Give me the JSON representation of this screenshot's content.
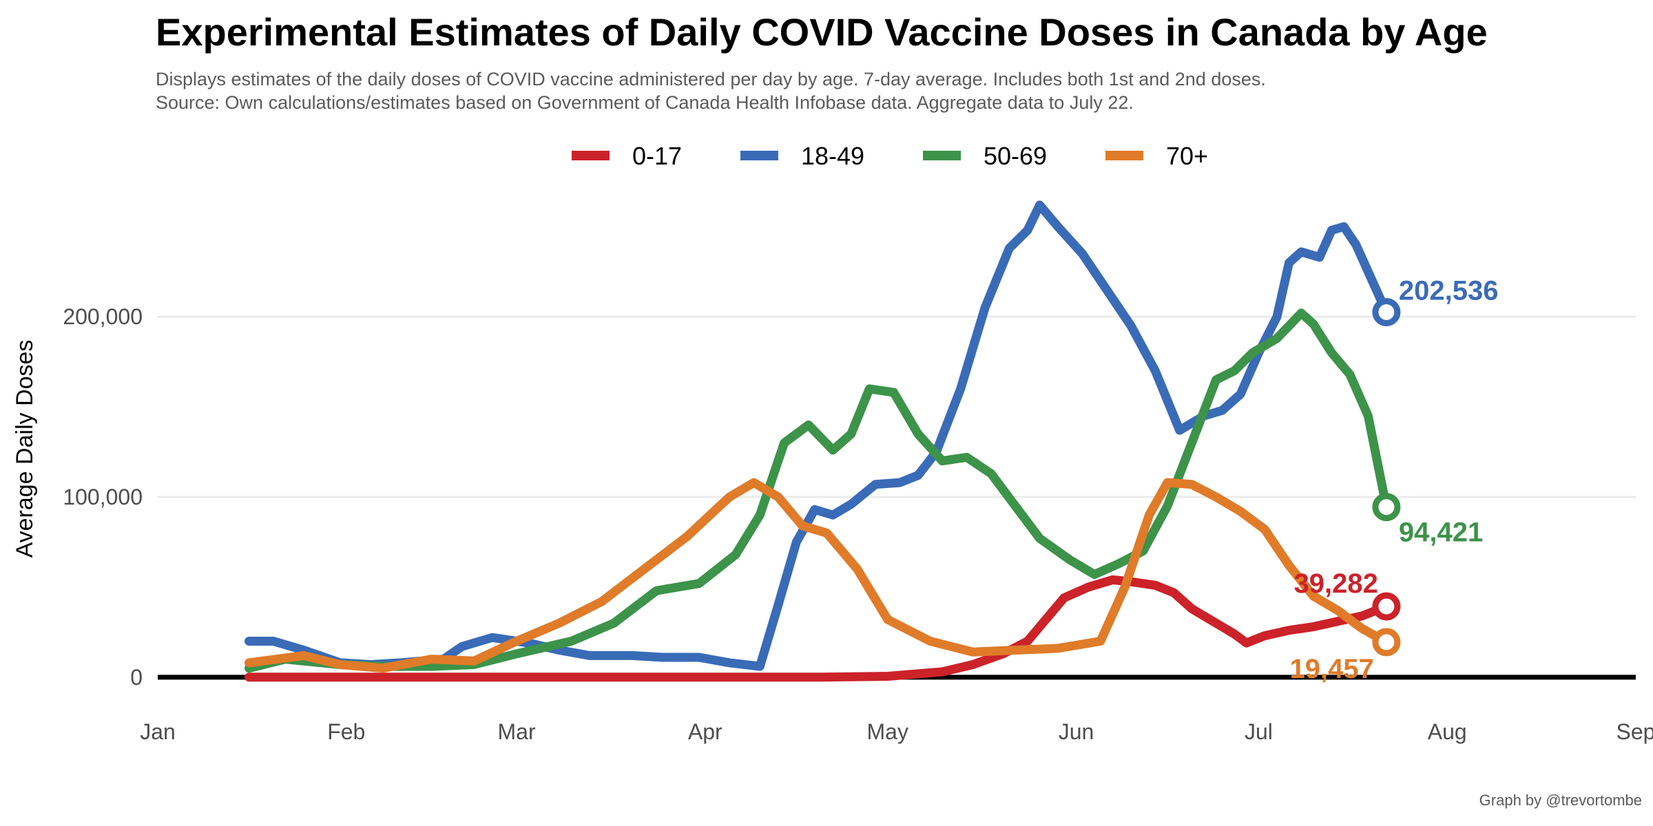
{
  "chart_data": {
    "type": "line",
    "title": "Experimental Estimates of Daily COVID Vaccine Doses in Canada by Age",
    "subtitle": [
      "Displays estimates of the daily doses of COVID vaccine administered per day by age. 7-day average. Includes both 1st and 2nd doses.",
      "Source: Own calculations/estimates based on Government of Canada Health Infobase data. Aggregate data to July 22."
    ],
    "caption": "Graph by @trevortombe",
    "ylabel": "Average Daily Doses",
    "xlabel": "",
    "x_tick_labels": [
      "Jan",
      "Feb",
      "Mar",
      "Apr",
      "May",
      "Jun",
      "Jul",
      "Aug",
      "Sep"
    ],
    "x_tick_dates": [
      "2021-01-01",
      "2021-02-01",
      "2021-03-01",
      "2021-04-01",
      "2021-05-01",
      "2021-06-01",
      "2021-07-01",
      "2021-08-01",
      "2021-09-01"
    ],
    "y_tick_values": [
      0,
      100000,
      200000
    ],
    "y_tick_labels": [
      "0",
      "100,000",
      "200,000"
    ],
    "xlim": [
      "2021-01-01",
      "2021-09-01"
    ],
    "ylim": [
      -10000,
      265000
    ],
    "grid": true,
    "legend_position": "top",
    "series": [
      {
        "name": "0-17",
        "color": "#cc2229",
        "end_label": "39,282",
        "points": [
          [
            "2021-01-16",
            0
          ],
          [
            "2021-02-15",
            0
          ],
          [
            "2021-03-20",
            0
          ],
          [
            "2021-04-20",
            0
          ],
          [
            "2021-05-01",
            500
          ],
          [
            "2021-05-10",
            3000
          ],
          [
            "2021-05-15",
            7000
          ],
          [
            "2021-05-20",
            13000
          ],
          [
            "2021-05-24",
            20000
          ],
          [
            "2021-05-27",
            32000
          ],
          [
            "2021-05-30",
            44000
          ],
          [
            "2021-06-03",
            50000
          ],
          [
            "2021-06-07",
            54000
          ],
          [
            "2021-06-10",
            53000
          ],
          [
            "2021-06-14",
            51000
          ],
          [
            "2021-06-17",
            47000
          ],
          [
            "2021-06-20",
            38000
          ],
          [
            "2021-06-24",
            30000
          ],
          [
            "2021-06-27",
            24000
          ],
          [
            "2021-06-29",
            19000
          ],
          [
            "2021-07-02",
            23000
          ],
          [
            "2021-07-06",
            26000
          ],
          [
            "2021-07-10",
            28000
          ],
          [
            "2021-07-14",
            31000
          ],
          [
            "2021-07-18",
            34000
          ],
          [
            "2021-07-22",
            39282
          ]
        ]
      },
      {
        "name": "18-49",
        "color": "#3a6bb7",
        "end_label": "202,536",
        "points": [
          [
            "2021-01-16",
            20000
          ],
          [
            "2021-01-20",
            20000
          ],
          [
            "2021-01-25",
            15000
          ],
          [
            "2021-01-31",
            8000
          ],
          [
            "2021-02-05",
            7000
          ],
          [
            "2021-02-10",
            8000
          ],
          [
            "2021-02-17",
            10000
          ],
          [
            "2021-02-20",
            17000
          ],
          [
            "2021-02-25",
            22000
          ],
          [
            "2021-03-03",
            19000
          ],
          [
            "2021-03-08",
            15000
          ],
          [
            "2021-03-13",
            12000
          ],
          [
            "2021-03-20",
            12000
          ],
          [
            "2021-03-25",
            11000
          ],
          [
            "2021-03-31",
            11000
          ],
          [
            "2021-04-05",
            8000
          ],
          [
            "2021-04-10",
            6000
          ],
          [
            "2021-04-13",
            40000
          ],
          [
            "2021-04-16",
            75000
          ],
          [
            "2021-04-19",
            93000
          ],
          [
            "2021-04-22",
            90000
          ],
          [
            "2021-04-25",
            96000
          ],
          [
            "2021-04-29",
            107000
          ],
          [
            "2021-05-03",
            108000
          ],
          [
            "2021-05-06",
            112000
          ],
          [
            "2021-05-09",
            125000
          ],
          [
            "2021-05-13",
            160000
          ],
          [
            "2021-05-17",
            205000
          ],
          [
            "2021-05-21",
            238000
          ],
          [
            "2021-05-24",
            248000
          ],
          [
            "2021-05-26",
            262000
          ],
          [
            "2021-05-29",
            250000
          ],
          [
            "2021-06-02",
            235000
          ],
          [
            "2021-06-06",
            215000
          ],
          [
            "2021-06-10",
            195000
          ],
          [
            "2021-06-14",
            170000
          ],
          [
            "2021-06-18",
            137000
          ],
          [
            "2021-06-22",
            145000
          ],
          [
            "2021-06-25",
            148000
          ],
          [
            "2021-06-28",
            157000
          ],
          [
            "2021-07-01",
            180000
          ],
          [
            "2021-07-04",
            200000
          ],
          [
            "2021-07-06",
            230000
          ],
          [
            "2021-07-08",
            236000
          ],
          [
            "2021-07-11",
            233000
          ],
          [
            "2021-07-13",
            248000
          ],
          [
            "2021-07-15",
            250000
          ],
          [
            "2021-07-17",
            240000
          ],
          [
            "2021-07-19",
            225000
          ],
          [
            "2021-07-22",
            202536
          ]
        ]
      },
      {
        "name": "50-69",
        "color": "#3c9349",
        "end_label": "94,421",
        "points": [
          [
            "2021-01-16",
            5000
          ],
          [
            "2021-01-22",
            10000
          ],
          [
            "2021-01-31",
            7000
          ],
          [
            "2021-02-07",
            6000
          ],
          [
            "2021-02-15",
            6000
          ],
          [
            "2021-02-22",
            7000
          ],
          [
            "2021-03-01",
            13000
          ],
          [
            "2021-03-10",
            20000
          ],
          [
            "2021-03-17",
            30000
          ],
          [
            "2021-03-24",
            48000
          ],
          [
            "2021-03-31",
            52000
          ],
          [
            "2021-04-06",
            68000
          ],
          [
            "2021-04-10",
            90000
          ],
          [
            "2021-04-14",
            130000
          ],
          [
            "2021-04-18",
            140000
          ],
          [
            "2021-04-22",
            126000
          ],
          [
            "2021-04-25",
            135000
          ],
          [
            "2021-04-28",
            160000
          ],
          [
            "2021-05-02",
            158000
          ],
          [
            "2021-05-06",
            135000
          ],
          [
            "2021-05-10",
            120000
          ],
          [
            "2021-05-14",
            122000
          ],
          [
            "2021-05-18",
            113000
          ],
          [
            "2021-05-22",
            95000
          ],
          [
            "2021-05-26",
            77000
          ],
          [
            "2021-05-31",
            65000
          ],
          [
            "2021-06-04",
            57000
          ],
          [
            "2021-06-08",
            63000
          ],
          [
            "2021-06-12",
            70000
          ],
          [
            "2021-06-16",
            95000
          ],
          [
            "2021-06-20",
            130000
          ],
          [
            "2021-06-24",
            165000
          ],
          [
            "2021-06-27",
            170000
          ],
          [
            "2021-06-30",
            180000
          ],
          [
            "2021-07-04",
            188000
          ],
          [
            "2021-07-08",
            202000
          ],
          [
            "2021-07-10",
            196000
          ],
          [
            "2021-07-13",
            180000
          ],
          [
            "2021-07-16",
            168000
          ],
          [
            "2021-07-19",
            145000
          ],
          [
            "2021-07-22",
            94421
          ]
        ]
      },
      {
        "name": "70+",
        "color": "#e07b29",
        "end_label": "19,457",
        "points": [
          [
            "2021-01-16",
            8000
          ],
          [
            "2021-01-25",
            12000
          ],
          [
            "2021-01-31",
            7000
          ],
          [
            "2021-02-07",
            5000
          ],
          [
            "2021-02-15",
            10000
          ],
          [
            "2021-02-22",
            9000
          ],
          [
            "2021-03-01",
            20000
          ],
          [
            "2021-03-08",
            30000
          ],
          [
            "2021-03-15",
            42000
          ],
          [
            "2021-03-22",
            60000
          ],
          [
            "2021-03-29",
            78000
          ],
          [
            "2021-04-05",
            100000
          ],
          [
            "2021-04-09",
            108000
          ],
          [
            "2021-04-13",
            100000
          ],
          [
            "2021-04-17",
            84000
          ],
          [
            "2021-04-21",
            80000
          ],
          [
            "2021-04-26",
            60000
          ],
          [
            "2021-05-01",
            32000
          ],
          [
            "2021-05-08",
            20000
          ],
          [
            "2021-05-15",
            14000
          ],
          [
            "2021-05-22",
            15000
          ],
          [
            "2021-05-29",
            16000
          ],
          [
            "2021-06-05",
            20000
          ],
          [
            "2021-06-09",
            50000
          ],
          [
            "2021-06-13",
            90000
          ],
          [
            "2021-06-16",
            108000
          ],
          [
            "2021-06-20",
            107000
          ],
          [
            "2021-06-24",
            100000
          ],
          [
            "2021-06-28",
            92000
          ],
          [
            "2021-07-02",
            82000
          ],
          [
            "2021-07-06",
            62000
          ],
          [
            "2021-07-10",
            45000
          ],
          [
            "2021-07-14",
            37000
          ],
          [
            "2021-07-18",
            27000
          ],
          [
            "2021-07-22",
            19457
          ]
        ]
      }
    ]
  }
}
